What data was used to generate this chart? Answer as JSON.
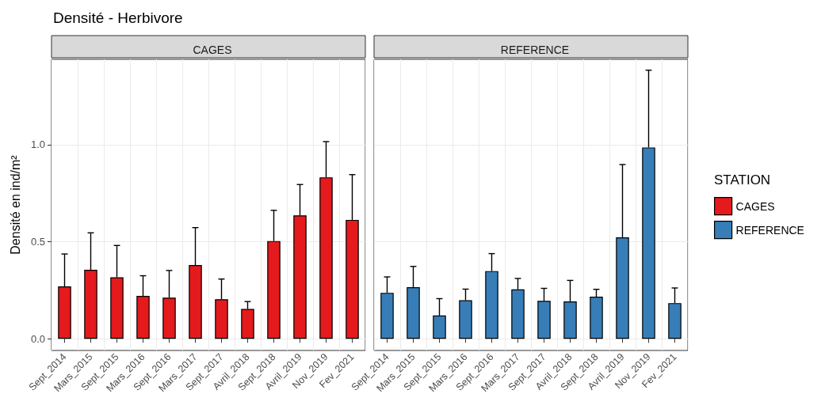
{
  "chart_data": [
    {
      "type": "bar",
      "title": "Densité - Herbivore",
      "subtitle": "CAGES",
      "ylabel": "Densité en ind/m²",
      "legend_title": "STATION",
      "legend": "right",
      "categories": [
        "Sept_2014",
        "Mars_2015",
        "Sept_2015",
        "Mars_2016",
        "Sept_2016",
        "Mars_2017",
        "Sept_2017",
        "Avril_2018",
        "Sept_2018",
        "Avril_2019",
        "Nov_2019",
        "Fev_2021"
      ],
      "series": [
        {
          "name": "CAGES",
          "color": "#e41a1c",
          "values": [
            0.27,
            0.356,
            0.317,
            0.221,
            0.212,
            0.38,
            0.204,
            0.154,
            0.504,
            0.636,
            0.832,
            0.613
          ],
          "errors": [
            [
              0.27,
              0.437
            ],
            [
              0.356,
              0.546
            ],
            [
              0.317,
              0.481
            ],
            [
              0.221,
              0.325
            ],
            [
              0.212,
              0.352
            ],
            [
              0.38,
              0.573
            ],
            [
              0.204,
              0.308
            ],
            [
              0.154,
              0.192
            ],
            [
              0.504,
              0.662
            ],
            [
              0.636,
              0.795
            ],
            [
              0.832,
              1.016
            ],
            [
              0.613,
              0.846
            ]
          ]
        }
      ],
      "ylim": [
        -0.06,
        1.44
      ],
      "yticks": [
        {
          "value": 0,
          "label": "0.0"
        },
        {
          "value": 0.5,
          "label": "0.5"
        },
        {
          "value": 1,
          "label": "1.0"
        }
      ],
      "grid": true
    },
    {
      "type": "bar",
      "subtitle": "REFERENCE",
      "legend": "right",
      "tick_labels": "x",
      "categories": [
        "Sept_2014",
        "Mars_2015",
        "Sept_2015",
        "Mars_2016",
        "Sept_2016",
        "Mars_2017",
        "Sept_2017",
        "Avril_2018",
        "Sept_2018",
        "Avril_2019",
        "Nov_2019",
        "Fev_2021"
      ],
      "series": [
        {
          "name": "REFERENCE",
          "color": "#377eb8",
          "values": [
            0.237,
            0.266,
            0.12,
            0.199,
            0.349,
            0.255,
            0.196,
            0.193,
            0.217,
            0.523,
            0.986,
            0.184
          ],
          "errors": [
            [
              0.237,
              0.319
            ],
            [
              0.266,
              0.373
            ],
            [
              0.12,
              0.207
            ],
            [
              0.199,
              0.256
            ],
            [
              0.349,
              0.439
            ],
            [
              0.255,
              0.311
            ],
            [
              0.196,
              0.26
            ],
            [
              0.193,
              0.301
            ],
            [
              0.217,
              0.255
            ],
            [
              0.523,
              0.898
            ],
            [
              0.986,
              1.384
            ],
            [
              0.184,
              0.262
            ]
          ]
        }
      ],
      "ylim": [
        -0.06,
        1.44
      ],
      "yticks": [
        0,
        0.5,
        1
      ],
      "grid": true
    }
  ]
}
